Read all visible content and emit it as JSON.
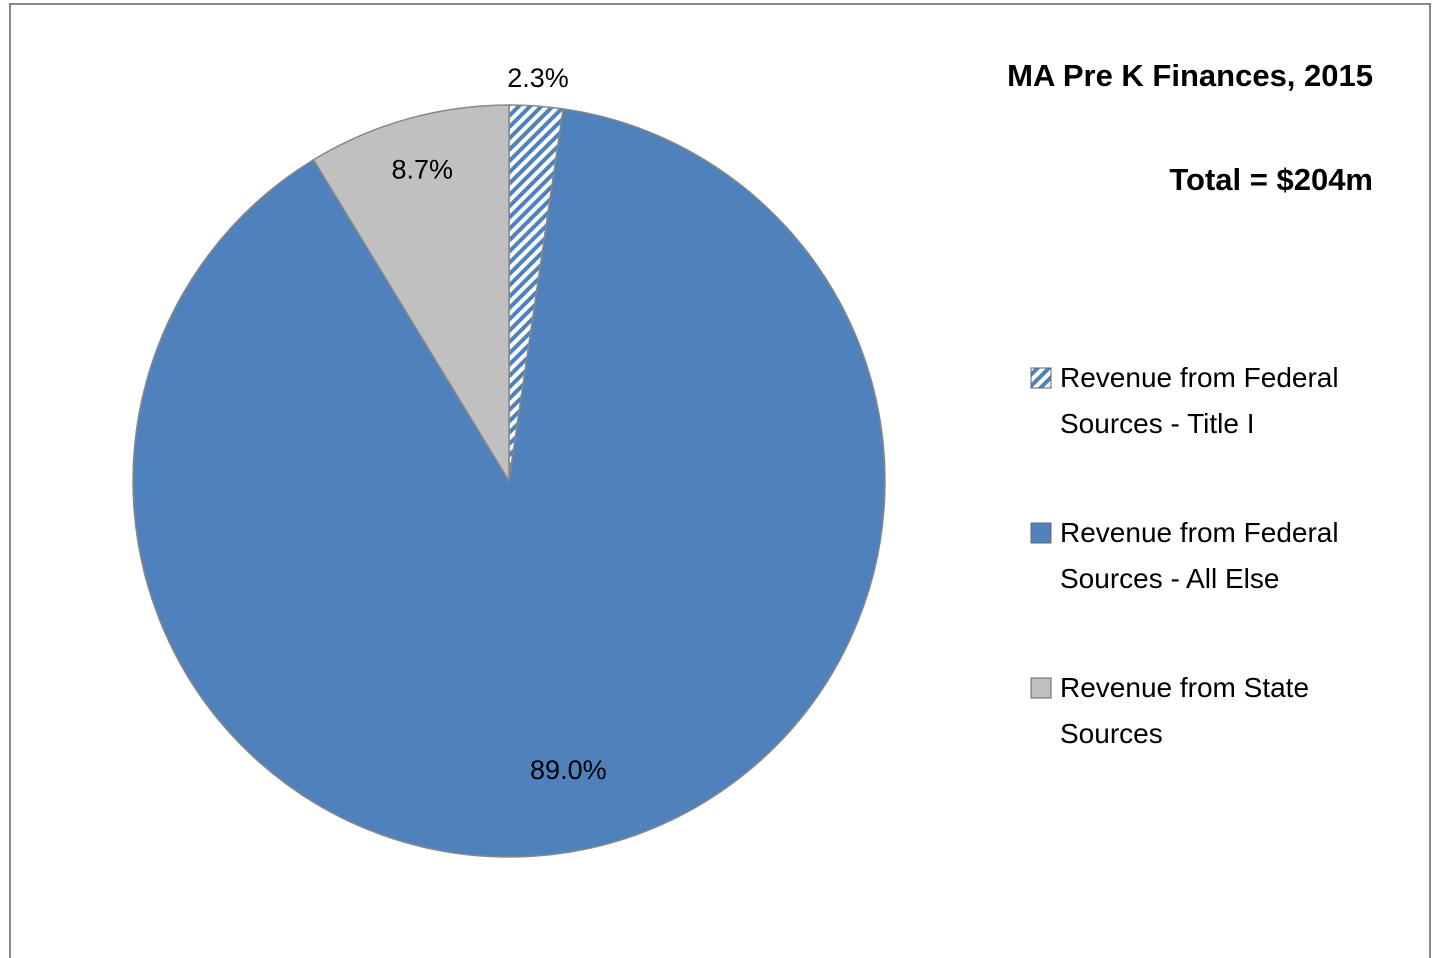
{
  "chart_data": {
    "type": "pie",
    "title": "MA Pre K Finances, 2015",
    "subtitle": "Total = $204m",
    "categories": [
      "Revenue from Federal Sources - Title I",
      "Revenue from Federal Sources - All Else",
      "Revenue from State Sources"
    ],
    "values": [
      2.3,
      89,
      8.7
    ],
    "value_labels": [
      "2.3%",
      "89.0%",
      "8.7%"
    ],
    "colors": [
      "#4f81bd",
      "#4f81bd",
      "#c0c0c0"
    ],
    "hatched": [
      true,
      false,
      false
    ]
  }
}
